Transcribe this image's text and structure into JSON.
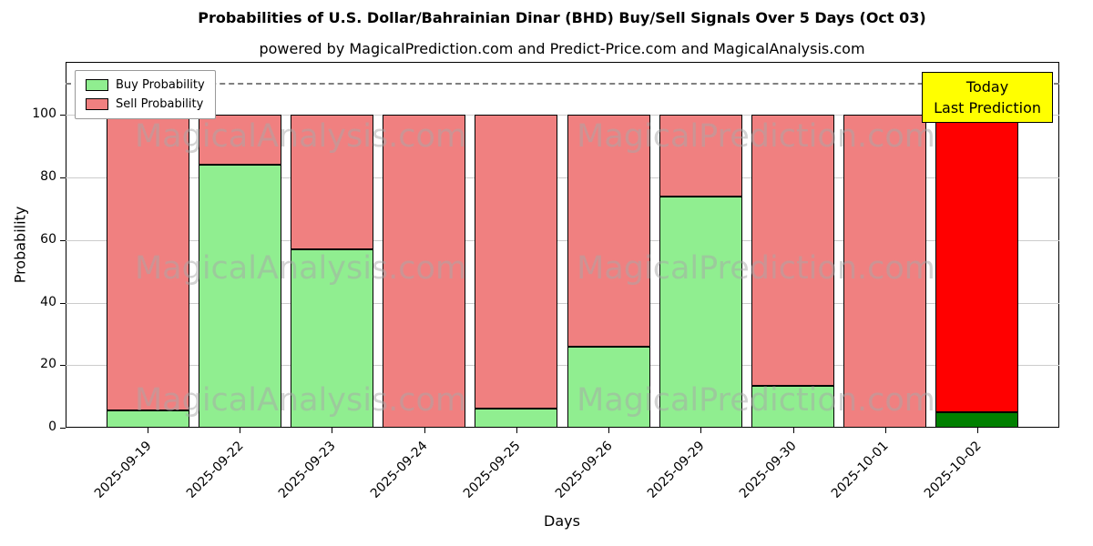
{
  "chart_data": {
    "type": "bar",
    "stacked": true,
    "title": "Probabilities of U.S. Dollar/Bahrainian Dinar (BHD) Buy/Sell Signals Over 5 Days (Oct 03)",
    "subtitle": "powered by MagicalPrediction.com and Predict-Price.com and MagicalAnalysis.com",
    "xlabel": "Days",
    "ylabel": "Probability",
    "ylim": [
      0,
      117
    ],
    "yticks": [
      0,
      20,
      40,
      60,
      80,
      100
    ],
    "grid": "horizontal",
    "legend_position": "upper-left",
    "dashed_line_y": 110,
    "categories": [
      "2025-09-19",
      "2025-09-22",
      "2025-09-23",
      "2025-09-24",
      "2025-09-25",
      "2025-09-26",
      "2025-09-29",
      "2025-09-30",
      "2025-10-01",
      "2025-10-02"
    ],
    "series": [
      {
        "name": "Buy Probability",
        "color": "#90ee90",
        "values": [
          5.5,
          84,
          57,
          0,
          6,
          26,
          74,
          13.5,
          0,
          5
        ]
      },
      {
        "name": "Sell Probability",
        "color": "#f08080",
        "values": [
          94.5,
          16,
          43,
          100,
          94,
          74,
          26,
          86.5,
          100,
          95
        ]
      }
    ],
    "highlight_last_bar": {
      "buy_color": "#008000",
      "sell_color": "#ff0000"
    },
    "annotation": {
      "lines": [
        "Today",
        "Last Prediction"
      ],
      "bg": "#ffff00"
    },
    "watermarks": [
      "MagicalAnalysis.com",
      "MagicalPrediction.com"
    ]
  }
}
